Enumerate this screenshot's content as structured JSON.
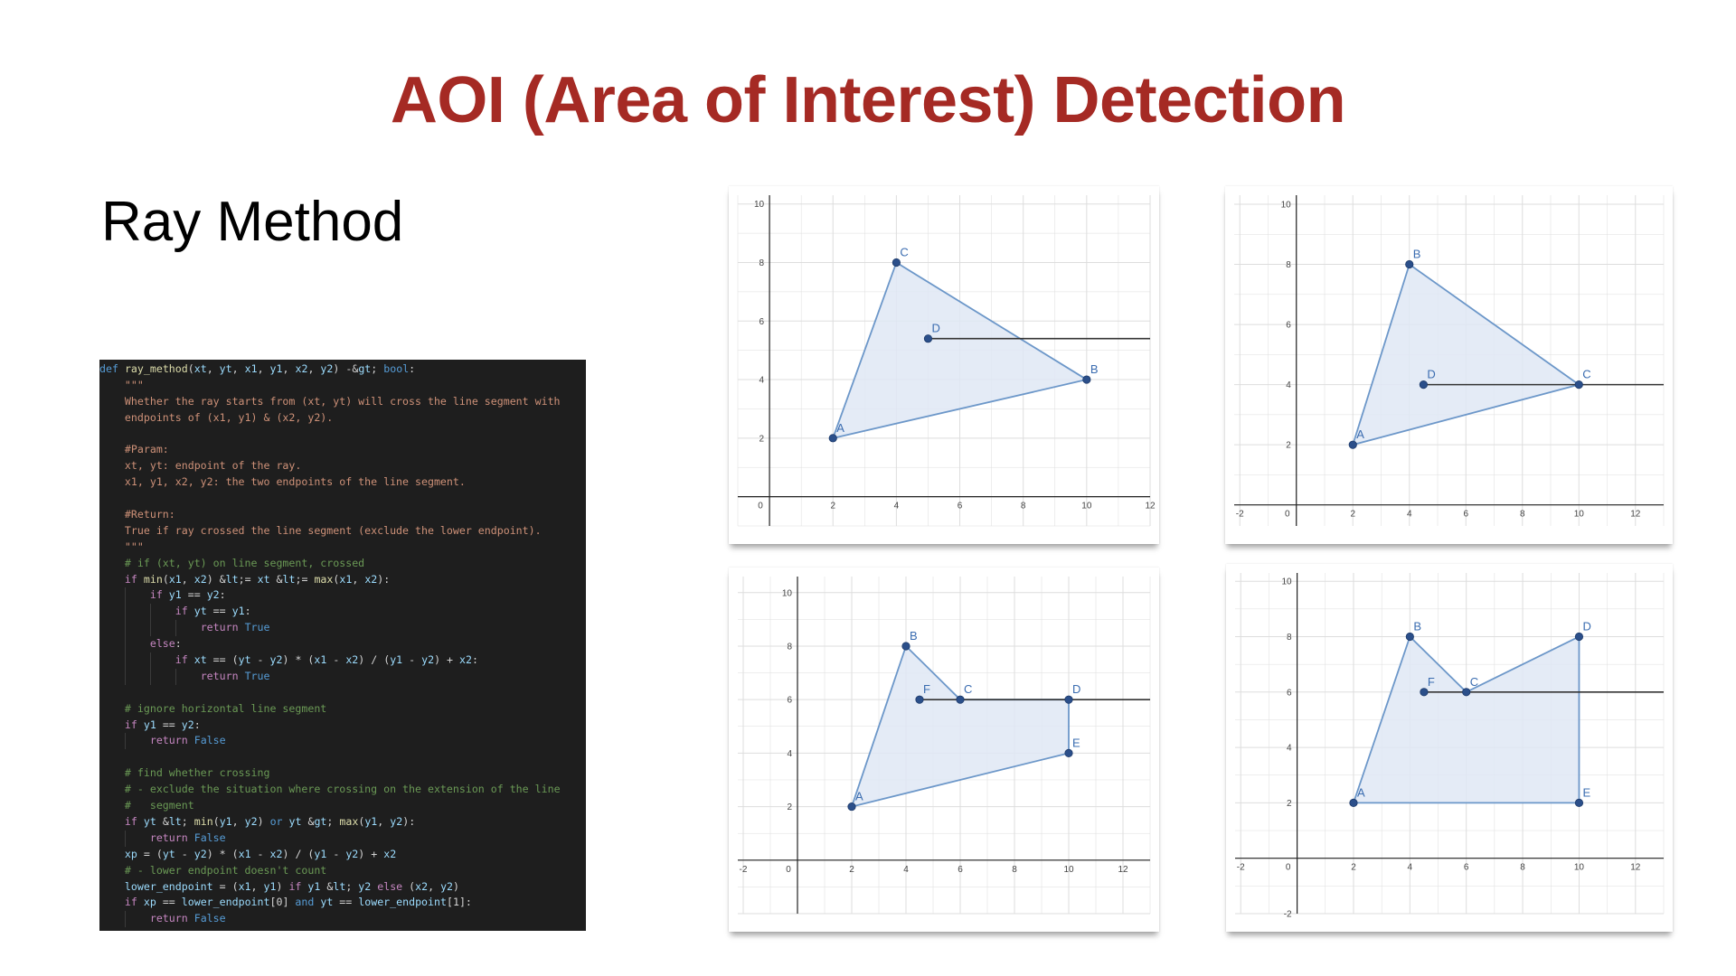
{
  "slide": {
    "title": "AOI (Area of Interest) Detection",
    "subtitle": "Ray Method"
  },
  "code": {
    "language": "python",
    "lines": [
      "def ray_method(xt, yt, x1, y1, x2, y2) -> bool:",
      "    \"\"\"",
      "    Whether the ray starts from (xt, yt) will cross the line segment with",
      "    endpoints of (x1, y1) & (x2, y2).",
      "",
      "    #Param:",
      "    xt, yt: endpoint of the ray.",
      "    x1, y1, x2, y2: the two endpoints of the line segment.",
      "",
      "    #Return:",
      "    True if ray crossed the line segment (exclude the lower endpoint).",
      "    \"\"\"",
      "    # if (xt, yt) on line segment, crossed",
      "    if min(x1, x2) <= xt <= max(x1, x2):",
      "        if y1 == y2:",
      "            if yt == y1:",
      "                return True",
      "        else:",
      "            if xt == (yt - y2) * (x1 - x2) / (y1 - y2) + x2:",
      "                return True",
      "",
      "    # ignore horizontal line segment",
      "    if y1 == y2:",
      "        return False",
      "",
      "    # find whether crossing",
      "    # - exclude the situation where crossing on the extension of the line",
      "    #   segment",
      "    if yt < min(y1, y2) or yt > max(y1, y2):",
      "        return False",
      "    xp = (yt - y2) * (x1 - x2) / (y1 - y2) + x2",
      "    # - lower endpoint doesn't count",
      "    lower_endpoint = (x1, y1) if y1 < y2 else (x2, y2)",
      "    if xp == lower_endpoint[0] and yt == lower_endpoint[1]:",
      "        return False"
    ]
  },
  "colors": {
    "title": "#a52a24",
    "polygon_fill": "#dfe8f4",
    "polygon_stroke": "#6c97c9",
    "point": "#2b4f8a",
    "point_label": "#3a6cb0",
    "ray": "#333333",
    "grid": "#dddddd",
    "axis": "#222222",
    "code_bg": "#1e1e1e"
  },
  "chart_data": [
    {
      "type": "scatter",
      "xlim": [
        -1,
        12
      ],
      "ylim": [
        -1,
        10.3
      ],
      "xticks": [
        "0",
        "2",
        "4",
        "6",
        "8",
        "10",
        "12"
      ],
      "yticks": [
        "2",
        "4",
        "6",
        "8",
        "10"
      ],
      "grid": true,
      "points": [
        {
          "label": "A",
          "x": 2,
          "y": 2
        },
        {
          "label": "C",
          "x": 4,
          "y": 8
        },
        {
          "label": "B",
          "x": 10,
          "y": 4
        },
        {
          "label": "D",
          "x": 5,
          "y": 5.4
        }
      ],
      "polygon": [
        "A",
        "C",
        "B"
      ],
      "ray": {
        "from": "D",
        "y": 5.4
      }
    },
    {
      "type": "scatter",
      "xlim": [
        -2.2,
        13
      ],
      "ylim": [
        -0.7,
        10.3
      ],
      "xticks": [
        "-2",
        "0",
        "2",
        "4",
        "6",
        "8",
        "10",
        "12"
      ],
      "yticks": [
        "2",
        "4",
        "6",
        "8",
        "10"
      ],
      "grid": true,
      "points": [
        {
          "label": "A",
          "x": 2,
          "y": 2
        },
        {
          "label": "B",
          "x": 4,
          "y": 8
        },
        {
          "label": "C",
          "x": 10,
          "y": 4
        },
        {
          "label": "D",
          "x": 4.5,
          "y": 4
        }
      ],
      "polygon": [
        "A",
        "B",
        "C"
      ],
      "ray": {
        "from": "D",
        "y": 4
      }
    },
    {
      "type": "scatter",
      "xlim": [
        -2.2,
        13
      ],
      "ylim": [
        -2,
        10.6
      ],
      "xticks": [
        "-2",
        "0",
        "2",
        "4",
        "6",
        "8",
        "10",
        "12"
      ],
      "yticks": [
        "2",
        "4",
        "6",
        "8",
        "10"
      ],
      "grid": true,
      "points": [
        {
          "label": "A",
          "x": 2,
          "y": 2
        },
        {
          "label": "B",
          "x": 4,
          "y": 8
        },
        {
          "label": "F",
          "x": 4.5,
          "y": 6
        },
        {
          "label": "C",
          "x": 6,
          "y": 6
        },
        {
          "label": "D",
          "x": 10,
          "y": 6
        },
        {
          "label": "E",
          "x": 10,
          "y": 4
        }
      ],
      "polygon": [
        "A",
        "B",
        "C",
        "D",
        "E"
      ],
      "ray": {
        "from": "F",
        "y": 6
      }
    },
    {
      "type": "scatter",
      "xlim": [
        -2.2,
        13
      ],
      "ylim": [
        -2,
        10.3
      ],
      "xticks": [
        "-2",
        "0",
        "2",
        "4",
        "6",
        "8",
        "10",
        "12"
      ],
      "yticks": [
        "-2",
        "2",
        "4",
        "6",
        "8",
        "10"
      ],
      "grid": true,
      "points": [
        {
          "label": "A",
          "x": 2,
          "y": 2
        },
        {
          "label": "B",
          "x": 4,
          "y": 8
        },
        {
          "label": "F",
          "x": 4.5,
          "y": 6
        },
        {
          "label": "C",
          "x": 6,
          "y": 6
        },
        {
          "label": "D",
          "x": 10,
          "y": 8
        },
        {
          "label": "E",
          "x": 10,
          "y": 2
        }
      ],
      "polygon": [
        "A",
        "B",
        "C",
        "D",
        "E"
      ],
      "ray": {
        "from": "F",
        "y": 6
      }
    }
  ]
}
